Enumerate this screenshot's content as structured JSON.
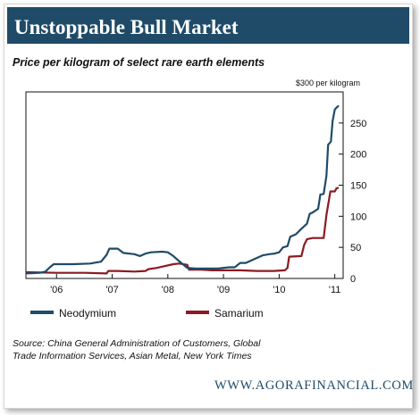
{
  "header": {
    "title": "Unstoppable Bull Market"
  },
  "subtitle": "Price per kilogram of select rare earth elements",
  "unit_label": "$300 per kilogram",
  "source": "Source: China General Administration of Customers, Global Trade Information Services, Asian Metal, New York Times",
  "footer": "WWW.AGORAFINANCIAL.COM",
  "colors": {
    "header_bg": "#1f4b68",
    "neodymium": "#1f4b68",
    "samarium": "#8b1a22",
    "footer_text": "#1f4b68"
  },
  "chart_data": {
    "type": "line",
    "title": "Price per kilogram of select rare earth elements",
    "xlabel": "",
    "ylabel": "$300 per kilogram",
    "ylim": [
      0,
      300
    ],
    "xlim": [
      2005.45,
      2011.15
    ],
    "grid": false,
    "legend_position": "bottom",
    "x_tick_labels": [
      {
        "x": 2006,
        "label": "'06"
      },
      {
        "x": 2007,
        "label": "'07"
      },
      {
        "x": 2008,
        "label": "'08"
      },
      {
        "x": 2009,
        "label": "'09"
      },
      {
        "x": 2010,
        "label": "'10"
      },
      {
        "x": 2011,
        "label": "'11"
      }
    ],
    "y_ticks": [
      0,
      50,
      100,
      150,
      200,
      250
    ],
    "series": [
      {
        "name": "Neodymium",
        "points": [
          [
            2005.45,
            8
          ],
          [
            2005.7,
            9
          ],
          [
            2005.8,
            11
          ],
          [
            2005.88,
            18
          ],
          [
            2005.95,
            23
          ],
          [
            2006.3,
            23
          ],
          [
            2006.6,
            24
          ],
          [
            2006.8,
            27
          ],
          [
            2006.9,
            38
          ],
          [
            2006.95,
            48
          ],
          [
            2007.1,
            48
          ],
          [
            2007.2,
            41
          ],
          [
            2007.4,
            39
          ],
          [
            2007.5,
            36
          ],
          [
            2007.6,
            40
          ],
          [
            2007.7,
            42
          ],
          [
            2007.9,
            43
          ],
          [
            2008.0,
            42
          ],
          [
            2008.1,
            36
          ],
          [
            2008.2,
            28
          ],
          [
            2008.35,
            17
          ],
          [
            2008.5,
            16
          ],
          [
            2008.7,
            16
          ],
          [
            2008.9,
            16
          ],
          [
            2009.1,
            18
          ],
          [
            2009.2,
            18
          ],
          [
            2009.3,
            25
          ],
          [
            2009.4,
            25
          ],
          [
            2009.45,
            27
          ],
          [
            2009.6,
            33
          ],
          [
            2009.7,
            37
          ],
          [
            2009.82,
            39
          ],
          [
            2009.92,
            40
          ],
          [
            2010.0,
            42
          ],
          [
            2010.07,
            50
          ],
          [
            2010.15,
            52
          ],
          [
            2010.2,
            67
          ],
          [
            2010.3,
            71
          ],
          [
            2010.4,
            80
          ],
          [
            2010.5,
            88
          ],
          [
            2010.55,
            104
          ],
          [
            2010.6,
            106
          ],
          [
            2010.7,
            112
          ],
          [
            2010.74,
            135
          ],
          [
            2010.8,
            136
          ],
          [
            2010.85,
            165
          ],
          [
            2010.88,
            215
          ],
          [
            2010.93,
            220
          ],
          [
            2010.96,
            253
          ],
          [
            2011.0,
            272
          ],
          [
            2011.07,
            278
          ]
        ]
      },
      {
        "name": "Samarium",
        "points": [
          [
            2005.45,
            10
          ],
          [
            2006.0,
            9
          ],
          [
            2006.5,
            9
          ],
          [
            2006.9,
            8
          ],
          [
            2006.93,
            12
          ],
          [
            2007.1,
            12
          ],
          [
            2007.4,
            11
          ],
          [
            2007.6,
            12
          ],
          [
            2007.65,
            15
          ],
          [
            2007.8,
            17
          ],
          [
            2007.95,
            20
          ],
          [
            2008.1,
            23
          ],
          [
            2008.2,
            24
          ],
          [
            2008.35,
            22
          ],
          [
            2008.38,
            14
          ],
          [
            2008.6,
            14
          ],
          [
            2008.8,
            13
          ],
          [
            2009.0,
            13
          ],
          [
            2009.3,
            13
          ],
          [
            2009.6,
            12
          ],
          [
            2009.9,
            12
          ],
          [
            2010.1,
            13
          ],
          [
            2010.15,
            17
          ],
          [
            2010.18,
            35
          ],
          [
            2010.4,
            36
          ],
          [
            2010.45,
            54
          ],
          [
            2010.5,
            63
          ],
          [
            2010.6,
            65
          ],
          [
            2010.8,
            65
          ],
          [
            2010.85,
            102
          ],
          [
            2010.92,
            140
          ],
          [
            2011.0,
            140
          ],
          [
            2011.03,
            145
          ],
          [
            2011.07,
            146
          ]
        ]
      }
    ]
  }
}
